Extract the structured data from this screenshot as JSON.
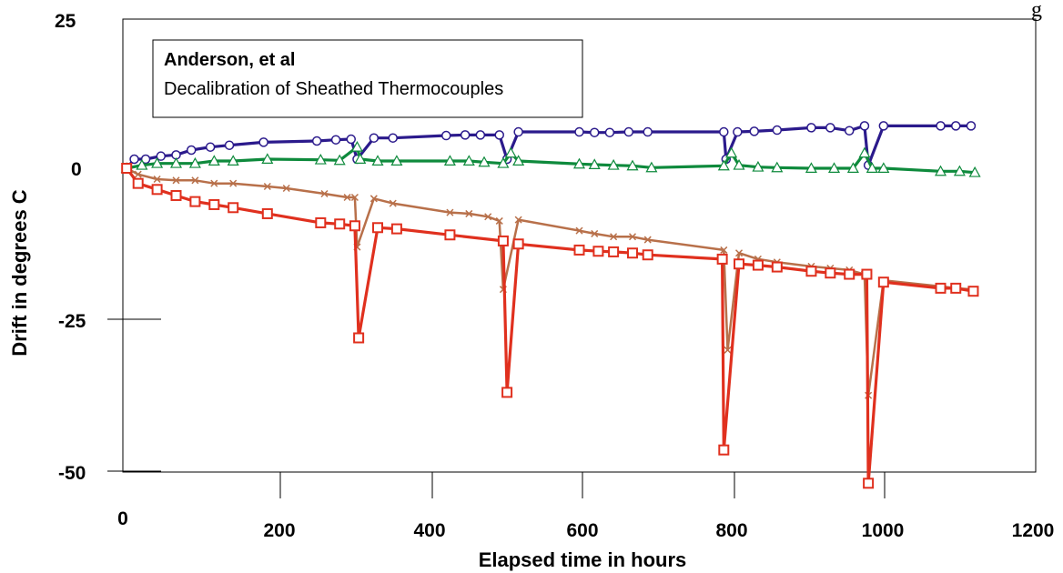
{
  "chart_data": {
    "type": "line",
    "title": "Anderson, et al",
    "subtitle": "Decalibration of Sheathed Thermocouples",
    "xlabel": "Elapsed time in hours",
    "ylabel": "Drift in degrees C",
    "corner_text": "g",
    "xlim": [
      0,
      1200
    ],
    "ylim": [
      -55,
      25
    ],
    "xticks": [
      "0",
      "200",
      "400",
      "600",
      "800",
      "1000",
      "1200"
    ],
    "yticks": [
      "25",
      "0",
      "-25",
      "-50"
    ],
    "grid": false,
    "legend": "top-left box",
    "series": [
      {
        "color": "#2b1a8c",
        "marker": "circle",
        "points": [
          [
            5,
            0
          ],
          [
            15,
            1.5
          ],
          [
            30,
            1.5
          ],
          [
            50,
            2
          ],
          [
            70,
            2.2
          ],
          [
            90,
            3
          ],
          [
            115,
            3.5
          ],
          [
            140,
            3.8
          ],
          [
            185,
            4.3
          ],
          [
            255,
            4.5
          ],
          [
            280,
            4.7
          ],
          [
            300,
            4.8
          ],
          [
            308,
            1.5
          ],
          [
            330,
            5
          ],
          [
            355,
            5
          ],
          [
            425,
            5.4
          ],
          [
            450,
            5.5
          ],
          [
            470,
            5.5
          ],
          [
            495,
            5.5
          ],
          [
            505,
            1.5
          ],
          [
            520,
            6
          ],
          [
            600,
            6
          ],
          [
            620,
            5.9
          ],
          [
            640,
            5.9
          ],
          [
            665,
            6
          ],
          [
            690,
            6
          ],
          [
            790,
            6
          ],
          [
            793,
            1.5
          ],
          [
            808,
            6
          ],
          [
            830,
            6.1
          ],
          [
            860,
            6.3
          ],
          [
            905,
            6.7
          ],
          [
            930,
            6.7
          ],
          [
            955,
            6.2
          ],
          [
            975,
            7
          ],
          [
            980,
            0.5
          ],
          [
            1000,
            7
          ],
          [
            1075,
            7
          ],
          [
            1095,
            7
          ],
          [
            1115,
            7
          ]
        ]
      },
      {
        "color": "#0e8a3c",
        "marker": "triangle",
        "points": [
          [
            5,
            0
          ],
          [
            25,
            0.5
          ],
          [
            45,
            0.8
          ],
          [
            70,
            0.8
          ],
          [
            95,
            0.8
          ],
          [
            120,
            1.2
          ],
          [
            145,
            1.2
          ],
          [
            190,
            1.5
          ],
          [
            260,
            1.4
          ],
          [
            285,
            1.3
          ],
          [
            308,
            3.5
          ],
          [
            312,
            1.5
          ],
          [
            335,
            1.2
          ],
          [
            360,
            1.2
          ],
          [
            430,
            1.2
          ],
          [
            455,
            1.2
          ],
          [
            475,
            1
          ],
          [
            500,
            0.8
          ],
          [
            510,
            2.5
          ],
          [
            520,
            1.2
          ],
          [
            600,
            0.7
          ],
          [
            620,
            0.6
          ],
          [
            645,
            0.5
          ],
          [
            670,
            0.4
          ],
          [
            695,
            0.1
          ],
          [
            790,
            0.4
          ],
          [
            800,
            2.5
          ],
          [
            810,
            0.5
          ],
          [
            835,
            0.2
          ],
          [
            860,
            0.1
          ],
          [
            905,
            0
          ],
          [
            935,
            0
          ],
          [
            960,
            0
          ],
          [
            975,
            2.5
          ],
          [
            985,
            0
          ],
          [
            1000,
            0
          ],
          [
            1075,
            -0.5
          ],
          [
            1100,
            -0.5
          ],
          [
            1120,
            -0.7
          ]
        ]
      },
      {
        "color": "#b8704a",
        "marker": "x",
        "points": [
          [
            5,
            0
          ],
          [
            20,
            -1
          ],
          [
            45,
            -1.8
          ],
          [
            70,
            -2
          ],
          [
            95,
            -2
          ],
          [
            120,
            -2.5
          ],
          [
            145,
            -2.5
          ],
          [
            190,
            -3
          ],
          [
            215,
            -3.3
          ],
          [
            265,
            -4.2
          ],
          [
            295,
            -4.8
          ],
          [
            305,
            -4.8
          ],
          [
            308,
            -13
          ],
          [
            330,
            -5
          ],
          [
            355,
            -5.8
          ],
          [
            430,
            -7.3
          ],
          [
            455,
            -7.5
          ],
          [
            480,
            -8
          ],
          [
            495,
            -8.7
          ],
          [
            500,
            -20
          ],
          [
            520,
            -8.5
          ],
          [
            600,
            -10.3
          ],
          [
            620,
            -10.8
          ],
          [
            645,
            -11.3
          ],
          [
            670,
            -11.3
          ],
          [
            690,
            -11.8
          ],
          [
            790,
            -13.5
          ],
          [
            795,
            -30
          ],
          [
            810,
            -14
          ],
          [
            835,
            -15
          ],
          [
            860,
            -15.5
          ],
          [
            905,
            -16.2
          ],
          [
            930,
            -16.5
          ],
          [
            955,
            -16.8
          ],
          [
            975,
            -17.5
          ],
          [
            980,
            -37.5
          ],
          [
            1000,
            -18.5
          ],
          [
            1075,
            -19.5
          ],
          [
            1095,
            -19.8
          ],
          [
            1118,
            -20
          ]
        ]
      },
      {
        "color": "#e0301e",
        "marker": "square",
        "points": [
          [
            5,
            0
          ],
          [
            20,
            -2.5
          ],
          [
            45,
            -3.5
          ],
          [
            70,
            -4.5
          ],
          [
            95,
            -5.5
          ],
          [
            120,
            -6
          ],
          [
            145,
            -6.5
          ],
          [
            190,
            -7.5
          ],
          [
            260,
            -9
          ],
          [
            285,
            -9.2
          ],
          [
            305,
            -9.5
          ],
          [
            310,
            -28
          ],
          [
            335,
            -9.8
          ],
          [
            360,
            -10
          ],
          [
            430,
            -11
          ],
          [
            500,
            -12
          ],
          [
            505,
            -37
          ],
          [
            520,
            -12.5
          ],
          [
            600,
            -13.5
          ],
          [
            625,
            -13.7
          ],
          [
            645,
            -13.8
          ],
          [
            670,
            -14
          ],
          [
            690,
            -14.3
          ],
          [
            788,
            -15
          ],
          [
            790,
            -46.5
          ],
          [
            810,
            -15.8
          ],
          [
            835,
            -16
          ],
          [
            860,
            -16.3
          ],
          [
            905,
            -17
          ],
          [
            930,
            -17.3
          ],
          [
            955,
            -17.5
          ],
          [
            978,
            -17.5
          ],
          [
            980,
            -52
          ],
          [
            1000,
            -18.8
          ],
          [
            1075,
            -19.8
          ],
          [
            1095,
            -19.8
          ],
          [
            1118,
            -20.3
          ]
        ]
      }
    ]
  }
}
